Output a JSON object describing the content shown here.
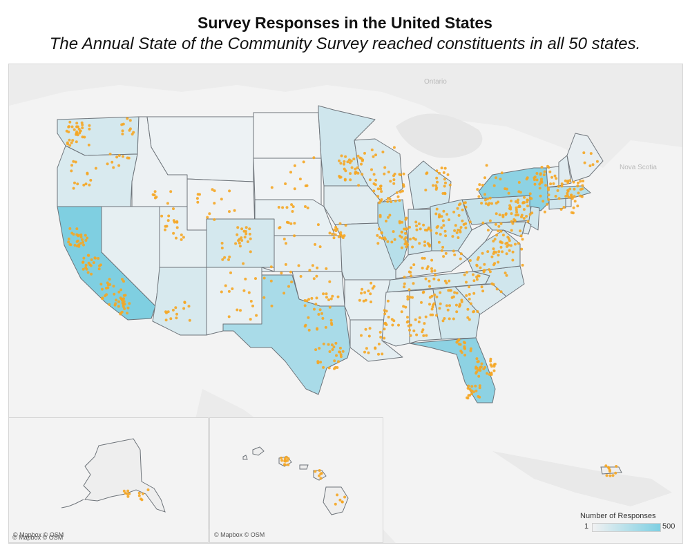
{
  "title": "Survey Responses in the United States",
  "subtitle": "The Annual State of the Community Survey reached constituents in all 50 states.",
  "map": {
    "basemap_labels": [
      "Ontario",
      "Nova Scotia"
    ],
    "attribution": "© Mapbox © OSM",
    "point_color": "#f5a623",
    "state_fill_low": "#eff2f4",
    "state_fill_high": "#7dcfe2",
    "high_response_states": [
      "California",
      "Texas",
      "Florida",
      "New York"
    ]
  },
  "insets": {
    "alaska": {
      "attribution": "© Mapbox © OSM"
    },
    "hawaii": {
      "attribution": "© Mapbox © OSM"
    }
  },
  "legend": {
    "title": "Number of Responses",
    "min_label": "1",
    "max_label": "500"
  }
}
